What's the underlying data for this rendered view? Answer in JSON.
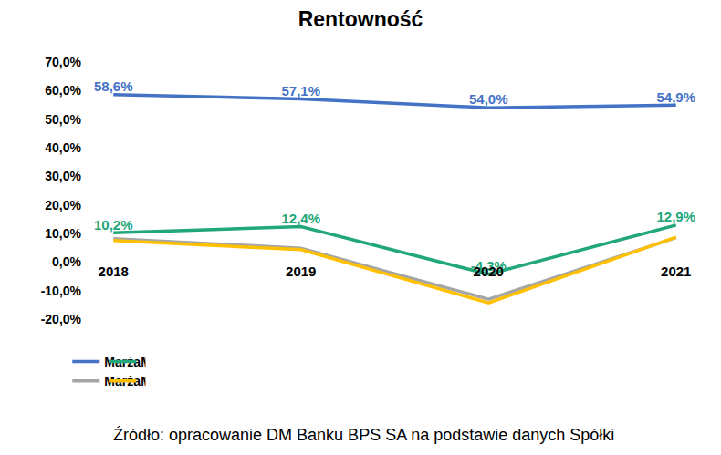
{
  "chart_data": {
    "type": "line",
    "title": "Rentowność",
    "source": "Źródło: opracowanie DM Banku BPS SA na podstawie danych Spółki",
    "categories": [
      "2018",
      "2019",
      "2020",
      "2021"
    ],
    "ylim": [
      -20,
      70
    ],
    "yticks": [
      {
        "value": -20,
        "label": "-20,0%"
      },
      {
        "value": -10,
        "label": "-10,0%"
      },
      {
        "value": 0,
        "label": "0,0%"
      },
      {
        "value": 10,
        "label": "10,0%"
      },
      {
        "value": 20,
        "label": "20,0%"
      },
      {
        "value": 30,
        "label": "30,0%"
      },
      {
        "value": 40,
        "label": "40,0%"
      },
      {
        "value": 50,
        "label": "50,0%"
      },
      {
        "value": 60,
        "label": "60,0%"
      },
      {
        "value": 70,
        "label": "70,0%"
      }
    ],
    "grid": false,
    "legend": "bottom",
    "series": [
      {
        "name": "Marża brutto na sprzedaży",
        "color": "#4472c4",
        "data_labels": true,
        "values": [
          58.6,
          57.1,
          54.0,
          54.9
        ],
        "value_labels": [
          "58,6%",
          "57,1%",
          "54,0%",
          "54,9%"
        ]
      },
      {
        "name": "Marża EBITDA",
        "color": "#22a77a",
        "data_labels": true,
        "values": [
          10.2,
          12.4,
          -4.3,
          12.9
        ],
        "value_labels": [
          "10,2%",
          "12,4%",
          "-4,3%",
          "12,9%"
        ]
      },
      {
        "name": "Marża EBIT",
        "color": "#a5a5a5",
        "data_labels": false,
        "values": [
          8.2,
          4.8,
          -13.0,
          8.5
        ]
      },
      {
        "name": "Marża netto",
        "color": "#ffc000",
        "data_labels": false,
        "values": [
          7.5,
          4.3,
          -14.3,
          8.7
        ]
      }
    ]
  }
}
